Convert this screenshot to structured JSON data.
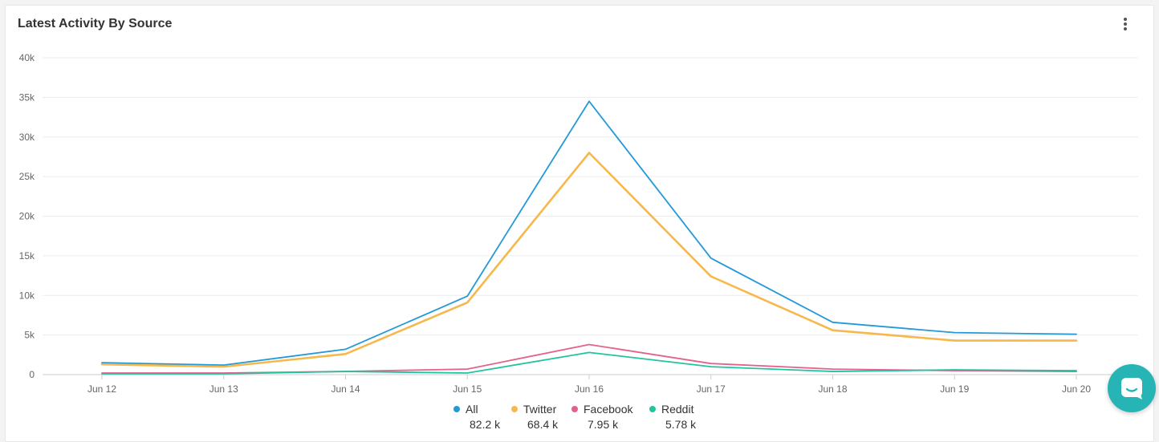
{
  "card": {
    "title": "Latest Activity By Source",
    "menu_icon": "more-vertical-icon"
  },
  "chart_data": {
    "type": "line",
    "title": "Latest Activity By Source",
    "categories": [
      "Jun 12",
      "Jun 13",
      "Jun 14",
      "Jun 15",
      "Jun 16",
      "Jun 17",
      "Jun 18",
      "Jun 19",
      "Jun 20"
    ],
    "y_ticks": [
      "0",
      "5k",
      "10k",
      "15k",
      "20k",
      "25k",
      "30k",
      "35k",
      "40k"
    ],
    "ylim": [
      0,
      40000
    ],
    "grid": true,
    "legend_position": "bottom-center",
    "series": [
      {
        "name": "All",
        "total": "82.2 k",
        "color": "#2399d8",
        "values": [
          1500,
          1200,
          3200,
          9900,
          34500,
          14700,
          6600,
          5300,
          5100
        ]
      },
      {
        "name": "Twitter",
        "total": "68.4 k",
        "color": "#f7b84b",
        "values": [
          1300,
          1000,
          2600,
          9100,
          28000,
          12400,
          5600,
          4300,
          4300
        ]
      },
      {
        "name": "Facebook",
        "total": "7.95 k",
        "color": "#e2628a",
        "values": [
          200,
          200,
          400,
          700,
          3800,
          1400,
          700,
          500,
          400
        ]
      },
      {
        "name": "Reddit",
        "total": "5.78 k",
        "color": "#22c49f",
        "values": [
          100,
          100,
          400,
          200,
          2800,
          1000,
          400,
          600,
          500
        ]
      }
    ]
  },
  "widget": {
    "icon": "chat-bubble-icon",
    "color": "#27b4b4"
  }
}
